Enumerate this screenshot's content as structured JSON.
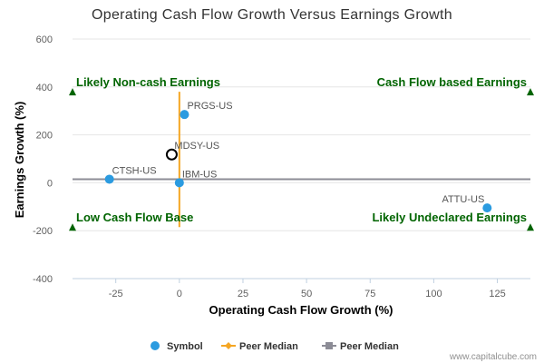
{
  "chart_data": {
    "type": "scatter",
    "title": "Operating Cash Flow Growth Versus Earnings Growth",
    "xlabel": "Operating Cash Flow Growth (%)",
    "ylabel": "Earnings Growth (%)",
    "xlim": [
      -42,
      138
    ],
    "ylim": [
      -400,
      600
    ],
    "x_ticks": [
      -25,
      0,
      25,
      50,
      75,
      100,
      125
    ],
    "y_ticks": [
      -400,
      -200,
      0,
      200,
      400,
      600
    ],
    "x_tick_labels": [
      "-25",
      "0",
      "25",
      "50",
      "75",
      "100",
      "125"
    ],
    "y_tick_labels": [
      "-400",
      "-200",
      "0",
      "200",
      "400",
      "600"
    ],
    "points": [
      {
        "label": "PRGS-US",
        "x": 2,
        "y": 285,
        "style": "filled"
      },
      {
        "label": "MDSY-US",
        "x": -3,
        "y": 118,
        "style": "highlight"
      },
      {
        "label": "CTSH-US",
        "x": -27.5,
        "y": 15,
        "style": "filled"
      },
      {
        "label": "IBM-US",
        "x": 0,
        "y": 0,
        "style": "filled"
      },
      {
        "label": "ATTU-US",
        "x": 121,
        "y": -105,
        "style": "filled"
      }
    ],
    "peer_median_x": 0,
    "peer_median_y": 15,
    "quadrant_labels": [
      {
        "text": "Likely Non-cash Earnings",
        "position": "top-left",
        "marker_x": -42,
        "marker_y": 380
      },
      {
        "text": "Cash Flow based Earnings",
        "position": "top-right",
        "marker_x": 138,
        "marker_y": 380
      },
      {
        "text": "Low Cash Flow Base",
        "position": "bottom-left",
        "marker_x": -42,
        "marker_y": -185
      },
      {
        "text": "Likely Undeclared Earnings",
        "position": "bottom-right",
        "marker_x": 138,
        "marker_y": -185
      }
    ],
    "legend": [
      {
        "label": "Symbol",
        "type": "point"
      },
      {
        "label": "Peer Median",
        "type": "vertical-line"
      },
      {
        "label": "Peer Median",
        "type": "horizontal-line"
      }
    ],
    "legend_position": "bottom-center"
  },
  "colors": {
    "point": "#2b9be0",
    "highlight_stroke": "#000000",
    "peer_median_vertical": "#f5a623",
    "peer_median_horizontal": "#8c8c96",
    "quadrant": "#006400",
    "grid": "#e6e6e6"
  },
  "credit": "www.capitalcube.com"
}
